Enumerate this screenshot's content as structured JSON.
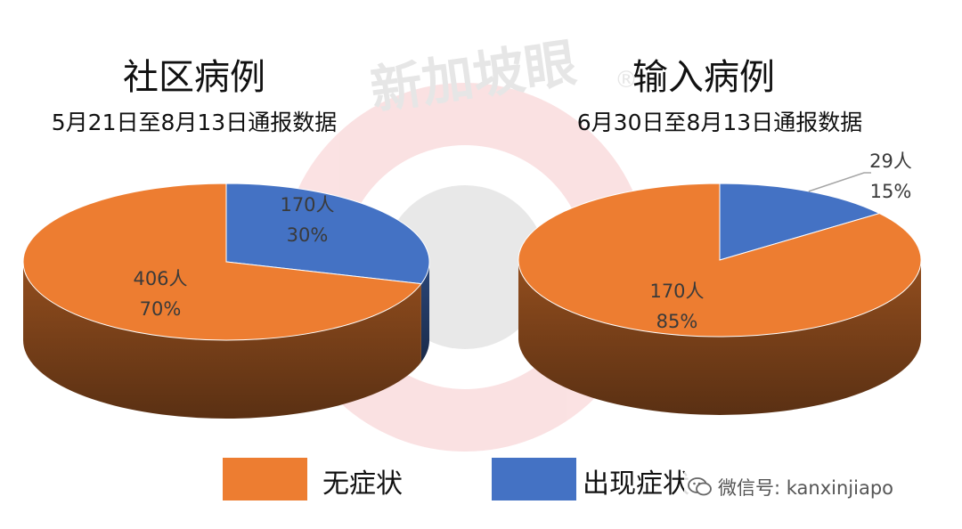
{
  "watermark": {
    "text": "新加坡眼",
    "mark": "®"
  },
  "charts": [
    {
      "title": "社区病例",
      "subtitle": "5月21日至8月13日通报数据"
    },
    {
      "title": "输入病例",
      "subtitle": "6月30日至8月13日通报数据"
    }
  ],
  "legend": [
    {
      "label": "无症状",
      "color": "#ED7D31"
    },
    {
      "label": "出现症状",
      "color": "#4472C4"
    }
  ],
  "footer": {
    "wechat": "微信号: kanxinjiapo"
  },
  "chart_data": [
    {
      "type": "pie",
      "title": "社区病例",
      "subtitle": "5月21日至8月13日通报数据",
      "categories": [
        "无症状",
        "出现症状"
      ],
      "values": [
        406,
        170
      ],
      "value_labels": [
        "406人",
        "170人"
      ],
      "percent_labels": [
        "70%",
        "30%"
      ],
      "colors": [
        "#ED7D31",
        "#4472C4"
      ]
    },
    {
      "type": "pie",
      "title": "输入病例",
      "subtitle": "6月30日至8月13日通报数据",
      "categories": [
        "无症状",
        "出现症状"
      ],
      "values": [
        170,
        29
      ],
      "value_labels": [
        "170人",
        "29人"
      ],
      "percent_labels": [
        "85%",
        "15%"
      ],
      "colors": [
        "#ED7D31",
        "#4472C4"
      ]
    }
  ]
}
